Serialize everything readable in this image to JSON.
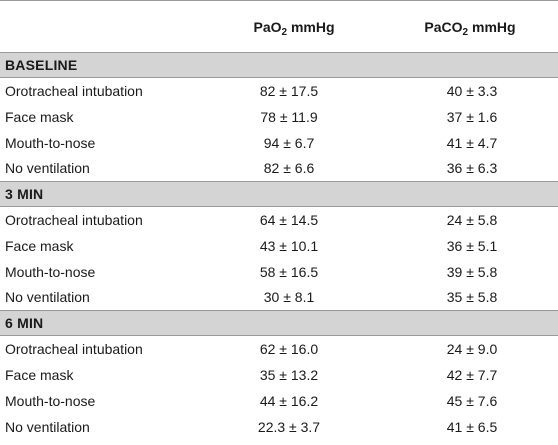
{
  "table": {
    "headers": {
      "pao2_main": "PaO",
      "pao2_sub": "2",
      "pao2_unit": " mmHg",
      "paco2_main": "PaCO",
      "paco2_sub": "2",
      "paco2_unit": " mmHg"
    },
    "groups": [
      {
        "title": "BASELINE",
        "rows": [
          {
            "label": "Orotracheal intubation",
            "pao2": "82 ± 17.5",
            "paco2": "40 ± 3.3"
          },
          {
            "label": "Face mask",
            "pao2": "78 ± 11.9",
            "paco2": "37 ± 1.6"
          },
          {
            "label": "Mouth-to-nose",
            "pao2": "94 ± 6.7",
            "paco2": "41 ± 4.7"
          },
          {
            "label": "No ventilation",
            "pao2": "82 ± 6.6",
            "paco2": "36 ± 6.3"
          }
        ]
      },
      {
        "title": "3 MIN",
        "rows": [
          {
            "label": "Orotracheal intubation",
            "pao2": "64 ± 14.5",
            "paco2": "24 ± 5.8"
          },
          {
            "label": "Face mask",
            "pao2": "43 ± 10.1",
            "paco2": "36 ± 5.1"
          },
          {
            "label": "Mouth-to-nose",
            "pao2": "58 ± 16.5",
            "paco2": "39 ± 5.8"
          },
          {
            "label": "No ventilation",
            "pao2": "30 ± 8.1",
            "paco2": "35 ± 5.8"
          }
        ]
      },
      {
        "title": "6 MIN",
        "rows": [
          {
            "label": "Orotracheal intubation",
            "pao2": "62 ± 16.0",
            "paco2": "24 ± 9.0"
          },
          {
            "label": "Face mask",
            "pao2": "35 ± 13.2",
            "paco2": "42 ± 7.7"
          },
          {
            "label": "Mouth-to-nose",
            "pao2": "44 ± 16.2",
            "paco2": "45 ± 7.6"
          },
          {
            "label": "No ventilation",
            "pao2": "22.3 ± 3.7",
            "paco2": "41 ± 6.5"
          }
        ]
      }
    ]
  }
}
